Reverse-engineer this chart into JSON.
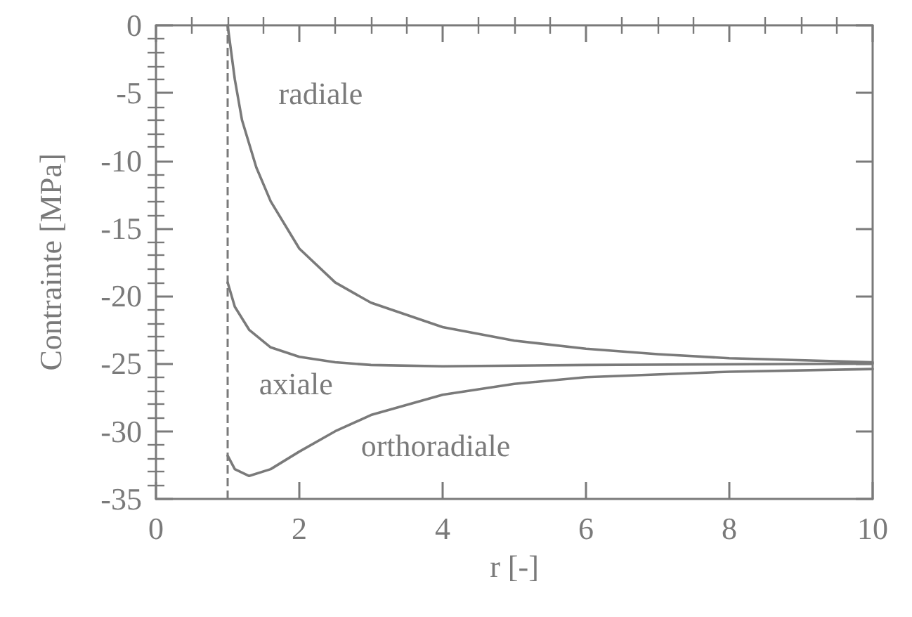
{
  "chart_data": {
    "type": "line",
    "xlabel": "r [-]",
    "ylabel": "Contrainte [MPa]",
    "xlim": [
      0,
      10
    ],
    "xticks": [
      0,
      2,
      4,
      6,
      8,
      10
    ],
    "ylim": [
      -35,
      0
    ],
    "yticks": [
      -35,
      -30,
      -25,
      -20,
      -15,
      -10,
      -5,
      0
    ],
    "grid": false,
    "marker": "none",
    "line_style": "solid",
    "series": [
      {
        "name": "radiale",
        "color": "#7a7a7a",
        "x": [
          1,
          1.1,
          1.2,
          1.4,
          1.6,
          2,
          2.5,
          3,
          4,
          5,
          6,
          7,
          8,
          10
        ],
        "values": [
          0,
          -4,
          -7,
          -10.5,
          -13,
          -16.5,
          -19,
          -20.5,
          -22.3,
          -23.3,
          -23.9,
          -24.3,
          -24.6,
          -24.9
        ]
      },
      {
        "name": "axiale",
        "color": "#7a7a7a",
        "x": [
          1,
          1.1,
          1.3,
          1.6,
          2,
          2.5,
          3,
          4,
          6,
          10
        ],
        "values": [
          -19,
          -20.8,
          -22.5,
          -23.8,
          -24.5,
          -24.9,
          -25.1,
          -25.2,
          -25.1,
          -25
        ]
      },
      {
        "name": "orthoradiale",
        "color": "#7a7a7a",
        "x": [
          1,
          1.1,
          1.3,
          1.6,
          2,
          2.5,
          3,
          4,
          5,
          6,
          8,
          10
        ],
        "values": [
          -31.8,
          -32.8,
          -33.3,
          -32.8,
          -31.5,
          -30,
          -28.8,
          -27.3,
          -26.5,
          -26,
          -25.6,
          -25.4
        ]
      }
    ],
    "ref_lines": [
      {
        "axis": "x",
        "value": 1,
        "line_style": "dashed",
        "color": "#7a7a7a"
      }
    ]
  }
}
